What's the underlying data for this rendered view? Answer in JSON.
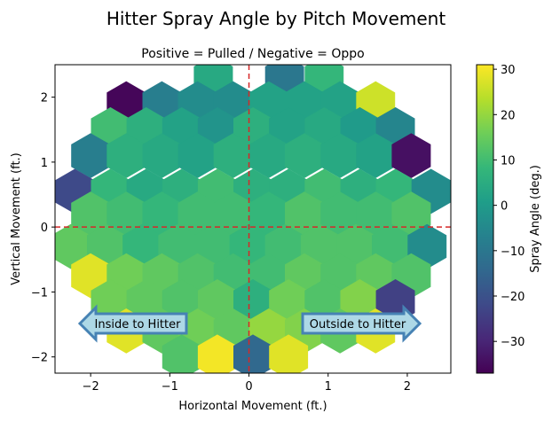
{
  "chart_data": {
    "type": "heatmap",
    "title": "Hitter Spray Angle by Pitch Movement",
    "subtitle": "Positive = Pulled / Negative = Oppo",
    "xlabel": "Horizontal Movement (ft.)",
    "ylabel": "Vertical Movement (ft.)",
    "xlim": [
      -2.45,
      2.55
    ],
    "ylim": [
      -2.25,
      2.5
    ],
    "xticks": [
      -2,
      -1,
      0,
      1,
      2
    ],
    "xtick_labels": [
      "−2",
      "−1",
      "0",
      "1",
      "2"
    ],
    "yticks": [
      -2,
      -1,
      0,
      1,
      2
    ],
    "ytick_labels": [
      "−2",
      "−1",
      "0",
      "1",
      "2"
    ],
    "colorbar": {
      "label": "Spray Angle (deg.)",
      "colormap": "viridis",
      "range": [
        -37,
        31
      ],
      "ticks": [
        -30,
        -20,
        -10,
        0,
        10,
        20,
        30
      ],
      "tick_labels": [
        "−30",
        "−20",
        "−10",
        "0",
        "10",
        "20",
        "30"
      ]
    },
    "reference_lines": [
      {
        "orientation": "vertical",
        "value": 0,
        "color": "#d62728",
        "style": "dashed"
      },
      {
        "orientation": "horizontal",
        "value": 0,
        "color": "#d62728",
        "style": "dashed"
      }
    ],
    "annotations": {
      "left_arrow": "Inside to Hitter",
      "right_arrow": "Outside to Hitter"
    },
    "hexbins": [
      {
        "x": -0.45,
        "y": 2.3,
        "value": 4
      },
      {
        "x": 0.45,
        "y": 2.3,
        "value": -10
      },
      {
        "x": 0.95,
        "y": 2.3,
        "value": 8
      },
      {
        "x": -1.55,
        "y": 1.9,
        "value": -36
      },
      {
        "x": -1.1,
        "y": 1.9,
        "value": -8
      },
      {
        "x": -0.65,
        "y": 1.9,
        "value": -4
      },
      {
        "x": -0.2,
        "y": 1.9,
        "value": -4
      },
      {
        "x": 0.25,
        "y": 1.9,
        "value": 2
      },
      {
        "x": 0.7,
        "y": 1.9,
        "value": 2
      },
      {
        "x": 1.15,
        "y": 1.9,
        "value": 2
      },
      {
        "x": 1.6,
        "y": 1.9,
        "value": 26
      },
      {
        "x": -1.75,
        "y": 1.5,
        "value": 10
      },
      {
        "x": -1.3,
        "y": 1.5,
        "value": 6
      },
      {
        "x": -0.85,
        "y": 1.5,
        "value": 2
      },
      {
        "x": -0.4,
        "y": 1.5,
        "value": -2
      },
      {
        "x": 0.05,
        "y": 1.5,
        "value": 6
      },
      {
        "x": 0.5,
        "y": 1.5,
        "value": 2
      },
      {
        "x": 0.95,
        "y": 1.5,
        "value": 4
      },
      {
        "x": 1.4,
        "y": 1.5,
        "value": 0
      },
      {
        "x": 1.85,
        "y": 1.5,
        "value": -6
      },
      {
        "x": -2.0,
        "y": 1.1,
        "value": -8
      },
      {
        "x": -1.55,
        "y": 1.1,
        "value": 6
      },
      {
        "x": -1.1,
        "y": 1.1,
        "value": 4
      },
      {
        "x": -0.65,
        "y": 1.1,
        "value": 2
      },
      {
        "x": -0.2,
        "y": 1.1,
        "value": 6
      },
      {
        "x": 0.25,
        "y": 1.1,
        "value": 4
      },
      {
        "x": 0.7,
        "y": 1.1,
        "value": 6
      },
      {
        "x": 1.15,
        "y": 1.1,
        "value": 4
      },
      {
        "x": 1.6,
        "y": 1.1,
        "value": 2
      },
      {
        "x": 2.05,
        "y": 1.1,
        "value": -34
      },
      {
        "x": -2.2,
        "y": 0.55,
        "value": -22
      },
      {
        "x": -1.75,
        "y": 0.55,
        "value": 8
      },
      {
        "x": -1.3,
        "y": 0.55,
        "value": 4
      },
      {
        "x": -0.85,
        "y": 0.55,
        "value": 6
      },
      {
        "x": -0.4,
        "y": 0.55,
        "value": 10
      },
      {
        "x": 0.05,
        "y": 0.55,
        "value": 6
      },
      {
        "x": 0.5,
        "y": 0.55,
        "value": 6
      },
      {
        "x": 0.95,
        "y": 0.55,
        "value": 10
      },
      {
        "x": 1.4,
        "y": 0.55,
        "value": 6
      },
      {
        "x": 1.85,
        "y": 0.55,
        "value": 8
      },
      {
        "x": 2.3,
        "y": 0.55,
        "value": -4
      },
      {
        "x": -2.0,
        "y": 0.2,
        "value": 12
      },
      {
        "x": -1.55,
        "y": 0.2,
        "value": 10
      },
      {
        "x": -1.1,
        "y": 0.2,
        "value": 8
      },
      {
        "x": -0.65,
        "y": 0.2,
        "value": 10
      },
      {
        "x": -0.2,
        "y": 0.2,
        "value": 10
      },
      {
        "x": 0.25,
        "y": 0.2,
        "value": 8
      },
      {
        "x": 0.7,
        "y": 0.2,
        "value": 12
      },
      {
        "x": 1.15,
        "y": 0.2,
        "value": 10
      },
      {
        "x": 1.6,
        "y": 0.2,
        "value": 10
      },
      {
        "x": 2.05,
        "y": 0.2,
        "value": 12
      },
      {
        "x": -2.25,
        "y": -0.3,
        "value": 14
      },
      {
        "x": -1.8,
        "y": -0.3,
        "value": 12
      },
      {
        "x": -1.35,
        "y": -0.3,
        "value": 8
      },
      {
        "x": -0.9,
        "y": -0.3,
        "value": 10
      },
      {
        "x": -0.45,
        "y": -0.3,
        "value": 10
      },
      {
        "x": 0.0,
        "y": -0.3,
        "value": 8
      },
      {
        "x": 0.45,
        "y": -0.3,
        "value": 10
      },
      {
        "x": 0.9,
        "y": -0.3,
        "value": 12
      },
      {
        "x": 1.35,
        "y": -0.3,
        "value": 12
      },
      {
        "x": 1.8,
        "y": -0.3,
        "value": 10
      },
      {
        "x": 2.25,
        "y": -0.3,
        "value": -4
      },
      {
        "x": -2.0,
        "y": -0.75,
        "value": 28
      },
      {
        "x": -1.55,
        "y": -0.75,
        "value": 16
      },
      {
        "x": -1.1,
        "y": -0.75,
        "value": 14
      },
      {
        "x": -0.65,
        "y": -0.75,
        "value": 12
      },
      {
        "x": -0.2,
        "y": -0.75,
        "value": 10
      },
      {
        "x": 0.25,
        "y": -0.75,
        "value": 10
      },
      {
        "x": 0.7,
        "y": -0.75,
        "value": 14
      },
      {
        "x": 1.15,
        "y": -0.75,
        "value": 12
      },
      {
        "x": 1.6,
        "y": -0.75,
        "value": 14
      },
      {
        "x": 2.05,
        "y": -0.75,
        "value": 12
      },
      {
        "x": -1.75,
        "y": -1.15,
        "value": 16
      },
      {
        "x": -1.3,
        "y": -1.15,
        "value": 14
      },
      {
        "x": -0.85,
        "y": -1.15,
        "value": 12
      },
      {
        "x": -0.4,
        "y": -1.15,
        "value": 14
      },
      {
        "x": 0.05,
        "y": -1.15,
        "value": 6
      },
      {
        "x": 0.5,
        "y": -1.15,
        "value": 16
      },
      {
        "x": 0.95,
        "y": -1.15,
        "value": 12
      },
      {
        "x": 1.4,
        "y": -1.15,
        "value": 18
      },
      {
        "x": 1.85,
        "y": -1.15,
        "value": -24
      },
      {
        "x": -1.55,
        "y": -1.6,
        "value": 28
      },
      {
        "x": -1.1,
        "y": -1.6,
        "value": 14
      },
      {
        "x": -0.65,
        "y": -1.6,
        "value": 16
      },
      {
        "x": -0.2,
        "y": -1.6,
        "value": 14
      },
      {
        "x": 0.25,
        "y": -1.6,
        "value": 20
      },
      {
        "x": 0.7,
        "y": -1.6,
        "value": 18
      },
      {
        "x": 1.15,
        "y": -1.6,
        "value": 14
      },
      {
        "x": 1.6,
        "y": -1.6,
        "value": 28
      },
      {
        "x": -0.85,
        "y": -2.0,
        "value": 12
      },
      {
        "x": -0.4,
        "y": -2.0,
        "value": 30
      },
      {
        "x": 0.05,
        "y": -2.0,
        "value": -14
      },
      {
        "x": 0.5,
        "y": -2.0,
        "value": 28
      }
    ]
  }
}
